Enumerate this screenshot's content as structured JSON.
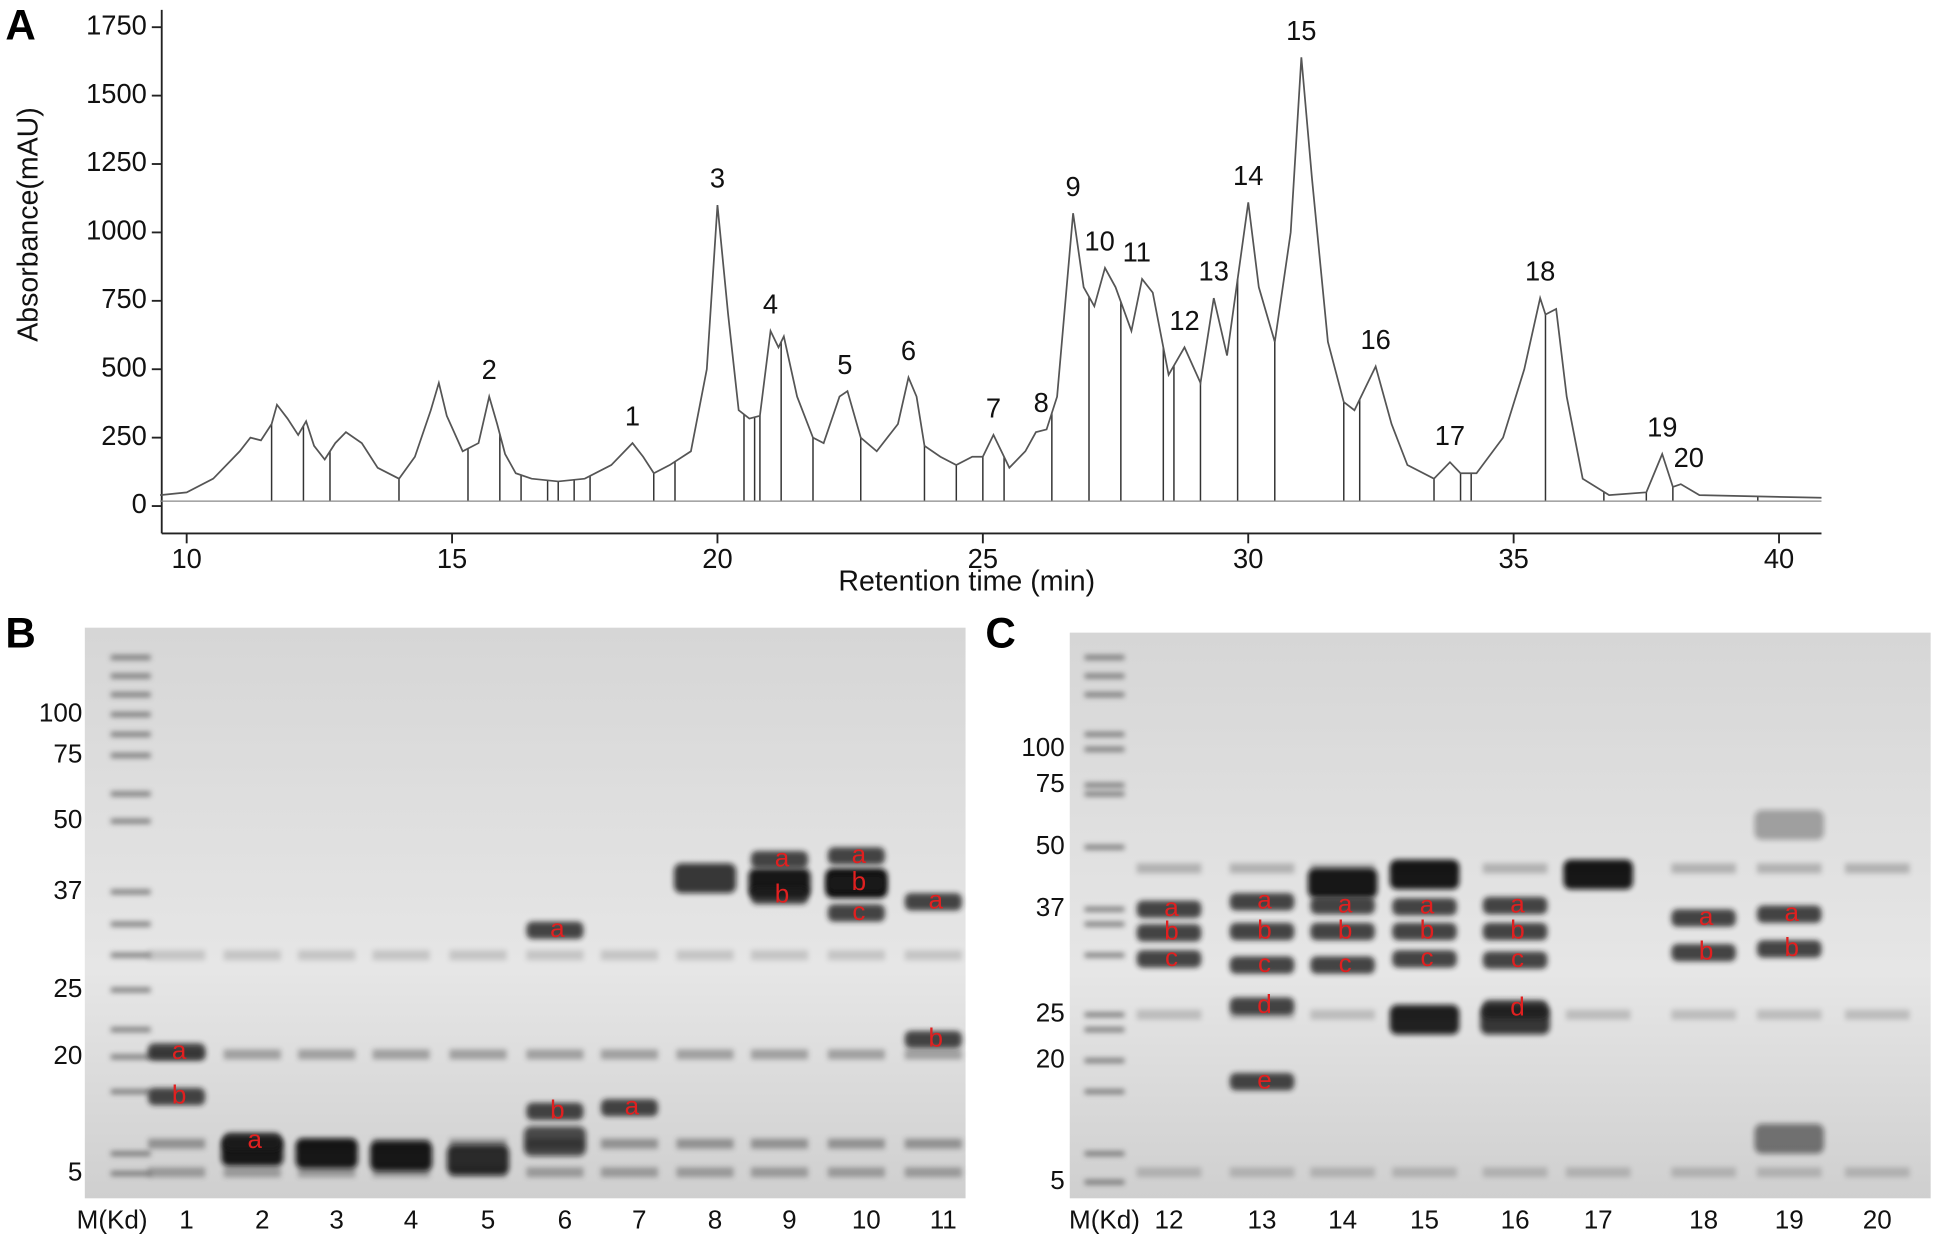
{
  "chart_data": {
    "type": "line",
    "panel_label": "A",
    "xlabel": "Retention time (min)",
    "ylabel": "Absorbance(mAU)",
    "xlim": [
      9.53,
      40.8
    ],
    "ylim": [
      -100,
      1795
    ],
    "xticks": [
      10,
      15,
      20,
      25,
      30,
      35,
      40
    ],
    "yticks": [
      0,
      250,
      500,
      750,
      1000,
      1250,
      1500,
      1750
    ],
    "color": "#555555",
    "x": [
      9.5,
      10,
      10.5,
      11,
      11.2,
      11.4,
      11.6,
      11.7,
      11.9,
      12.1,
      12.25,
      12.4,
      12.6,
      12.8,
      13.0,
      13.3,
      13.6,
      14.0,
      14.3,
      14.6,
      14.75,
      14.9,
      15.2,
      15.5,
      15.7,
      15.85,
      16.0,
      16.2,
      16.5,
      17.0,
      17.5,
      18.0,
      18.4,
      18.6,
      18.8,
      19.1,
      19.5,
      19.8,
      20.0,
      20.2,
      20.4,
      20.6,
      20.8,
      21.0,
      21.15,
      21.25,
      21.5,
      21.8,
      22.0,
      22.3,
      22.45,
      22.7,
      23.0,
      23.4,
      23.6,
      23.75,
      23.9,
      24.2,
      24.5,
      24.8,
      25.0,
      25.2,
      25.35,
      25.5,
      25.8,
      26.0,
      26.2,
      26.4,
      26.7,
      26.9,
      27.1,
      27.3,
      27.5,
      27.8,
      28.0,
      28.2,
      28.5,
      28.8,
      29.1,
      29.35,
      29.6,
      30.0,
      30.2,
      30.5,
      30.8,
      31.0,
      31.2,
      31.5,
      31.8,
      32.0,
      32.4,
      32.7,
      33.0,
      33.5,
      33.8,
      34.0,
      34.3,
      34.8,
      35.2,
      35.5,
      35.6,
      35.8,
      36.0,
      36.3,
      36.8,
      37.5,
      37.8,
      38.0,
      38.15,
      38.5,
      40.8
    ],
    "values": [
      40,
      50,
      100,
      200,
      250,
      240,
      300,
      370,
      320,
      260,
      310,
      220,
      170,
      230,
      270,
      230,
      140,
      100,
      180,
      350,
      450,
      330,
      200,
      230,
      400,
      300,
      190,
      120,
      100,
      90,
      100,
      150,
      230,
      180,
      120,
      150,
      200,
      500,
      1100,
      700,
      350,
      320,
      330,
      640,
      580,
      620,
      400,
      250,
      230,
      400,
      420,
      250,
      200,
      300,
      470,
      400,
      220,
      180,
      150,
      180,
      180,
      260,
      200,
      140,
      200,
      270,
      280,
      400,
      1070,
      800,
      730,
      870,
      800,
      640,
      830,
      780,
      480,
      580,
      450,
      760,
      550,
      1110,
      800,
      600,
      1000,
      1640,
      1200,
      600,
      380,
      350,
      510,
      300,
      150,
      100,
      160,
      120,
      120,
      250,
      500,
      760,
      700,
      720,
      400,
      100,
      40,
      50,
      190,
      70,
      80,
      40,
      30
    ],
    "drop_lines": [
      11.6,
      12.2,
      12.7,
      14.0,
      15.3,
      15.9,
      16.3,
      16.8,
      17.0,
      17.3,
      17.6,
      18.8,
      19.2,
      20.5,
      20.7,
      20.8,
      21.2,
      21.8,
      22.7,
      23.9,
      24.5,
      25.0,
      25.4,
      26.3,
      27.0,
      27.6,
      28.4,
      28.6,
      29.1,
      29.8,
      30.5,
      31.8,
      32.1,
      33.5,
      34.0,
      34.2,
      35.6,
      36.7,
      37.5,
      38.0,
      39.6
    ],
    "peaks": [
      {
        "label": "1",
        "x": 18.4,
        "y": 230
      },
      {
        "label": "2",
        "x": 15.7,
        "y": 400
      },
      {
        "label": "3",
        "x": 20.0,
        "y": 1100
      },
      {
        "label": "4",
        "x": 21.0,
        "y": 640
      },
      {
        "label": "5",
        "x": 22.4,
        "y": 420
      },
      {
        "label": "6",
        "x": 23.6,
        "y": 470
      },
      {
        "label": "7",
        "x": 25.2,
        "y": 260
      },
      {
        "label": "8",
        "x": 26.1,
        "y": 280
      },
      {
        "label": "9",
        "x": 26.7,
        "y": 1070
      },
      {
        "label": "10",
        "x": 27.2,
        "y": 870
      },
      {
        "label": "11",
        "x": 27.9,
        "y": 830
      },
      {
        "label": "12",
        "x": 28.8,
        "y": 580
      },
      {
        "label": "13",
        "x": 29.35,
        "y": 760
      },
      {
        "label": "14",
        "x": 30.0,
        "y": 1110
      },
      {
        "label": "15",
        "x": 31.0,
        "y": 1640
      },
      {
        "label": "16",
        "x": 32.4,
        "y": 510
      },
      {
        "label": "17",
        "x": 33.8,
        "y": 160
      },
      {
        "label": "18",
        "x": 35.5,
        "y": 760
      },
      {
        "label": "19",
        "x": 37.8,
        "y": 190
      },
      {
        "label": "20",
        "x": 38.3,
        "y": 80
      }
    ]
  },
  "gels": [
    {
      "label": "B",
      "marker_title": "M(Kd)",
      "markers": [
        "100",
        "75",
        "50",
        "37",
        "25",
        "20",
        "5"
      ],
      "lanes": [
        {
          "label": "1",
          "bands": [
            "a",
            "b"
          ]
        },
        {
          "label": "2",
          "bands": [
            "a"
          ]
        },
        {
          "label": "3",
          "bands": []
        },
        {
          "label": "4",
          "bands": []
        },
        {
          "label": "5",
          "bands": []
        },
        {
          "label": "6",
          "bands": [
            "a",
            "b"
          ]
        },
        {
          "label": "7",
          "bands": [
            "a"
          ]
        },
        {
          "label": "8",
          "bands": []
        },
        {
          "label": "9",
          "bands": [
            "a",
            "b"
          ]
        },
        {
          "label": "10",
          "bands": [
            "a",
            "b",
            "c"
          ]
        },
        {
          "label": "11",
          "bands": [
            "a",
            "b"
          ]
        }
      ]
    },
    {
      "label": "C",
      "marker_title": "M(Kd)",
      "markers": [
        "100",
        "75",
        "50",
        "37",
        "25",
        "20",
        "5"
      ],
      "lanes": [
        {
          "label": "12",
          "bands": [
            "a",
            "b",
            "c"
          ]
        },
        {
          "label": "13",
          "bands": [
            "a",
            "b",
            "c",
            "d",
            "e"
          ]
        },
        {
          "label": "14",
          "bands": [
            "a",
            "b",
            "c"
          ]
        },
        {
          "label": "15",
          "bands": [
            "a",
            "b",
            "c"
          ]
        },
        {
          "label": "16",
          "bands": [
            "a",
            "b",
            "c",
            "d"
          ]
        },
        {
          "label": "17",
          "bands": []
        },
        {
          "label": "18",
          "bands": [
            "a",
            "b"
          ]
        },
        {
          "label": "19",
          "bands": [
            "a",
            "b"
          ]
        },
        {
          "label": "20",
          "bands": []
        }
      ]
    }
  ]
}
